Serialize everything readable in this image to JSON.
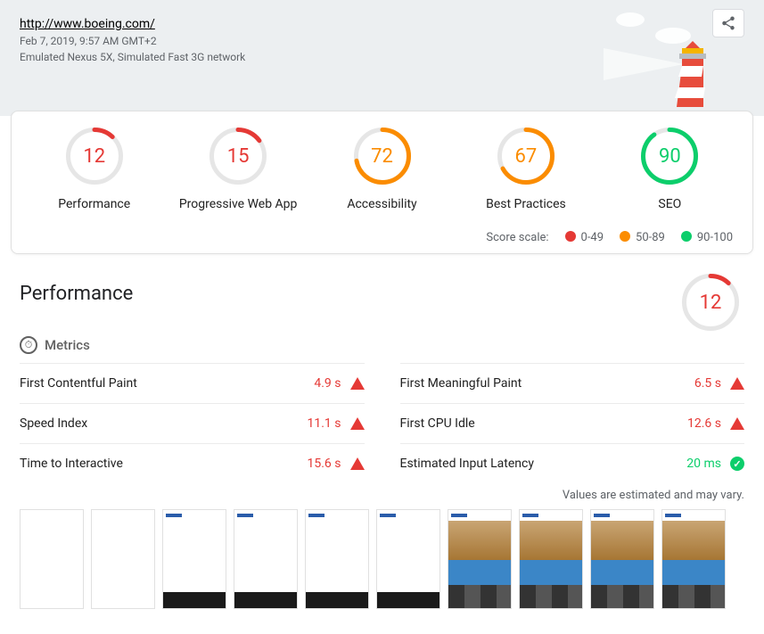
{
  "header": {
    "url": "http://www.boeing.com/",
    "timestamp": "Feb 7, 2019, 9:57 AM GMT+2",
    "device": "Emulated Nexus 5X, Simulated Fast 3G network"
  },
  "scores": [
    {
      "label": "Performance",
      "value": 12,
      "color": "#e53935"
    },
    {
      "label": "Progressive Web App",
      "value": 15,
      "color": "#e53935"
    },
    {
      "label": "Accessibility",
      "value": 72,
      "color": "#fb8c00"
    },
    {
      "label": "Best Practices",
      "value": 67,
      "color": "#fb8c00"
    },
    {
      "label": "SEO",
      "value": 90,
      "color": "#0cce6b"
    }
  ],
  "scale": {
    "label": "Score scale:",
    "ranges": [
      {
        "text": "0-49",
        "color": "#e53935"
      },
      {
        "text": "50-89",
        "color": "#fb8c00"
      },
      {
        "text": "90-100",
        "color": "#0cce6b"
      }
    ]
  },
  "gauge_style": {
    "diameter": 64,
    "stroke_width": 5,
    "track_color": "#e6e6e6",
    "font_size": 22
  },
  "performance": {
    "title": "Performance",
    "score": {
      "value": 12,
      "color": "#e53935"
    },
    "metrics_label": "Metrics",
    "metrics_left": [
      {
        "name": "First Contentful Paint",
        "value": "4.9 s",
        "status": "fail",
        "color": "#e53935"
      },
      {
        "name": "Speed Index",
        "value": "11.1 s",
        "status": "fail",
        "color": "#e53935"
      },
      {
        "name": "Time to Interactive",
        "value": "15.6 s",
        "status": "fail",
        "color": "#e53935"
      }
    ],
    "metrics_right": [
      {
        "name": "First Meaningful Paint",
        "value": "6.5 s",
        "status": "fail",
        "color": "#e53935"
      },
      {
        "name": "First CPU Idle",
        "value": "12.6 s",
        "status": "fail",
        "color": "#e53935"
      },
      {
        "name": "Estimated Input Latency",
        "value": "20 ms",
        "status": "pass",
        "color": "#0cce6b"
      }
    ],
    "vary_note": "Values are estimated and may vary.",
    "filmstrip": [
      {
        "stage": "blank"
      },
      {
        "stage": "blank"
      },
      {
        "stage": "partial"
      },
      {
        "stage": "partial"
      },
      {
        "stage": "partial"
      },
      {
        "stage": "partial"
      },
      {
        "stage": "full"
      },
      {
        "stage": "full"
      },
      {
        "stage": "full"
      },
      {
        "stage": "full"
      }
    ]
  }
}
